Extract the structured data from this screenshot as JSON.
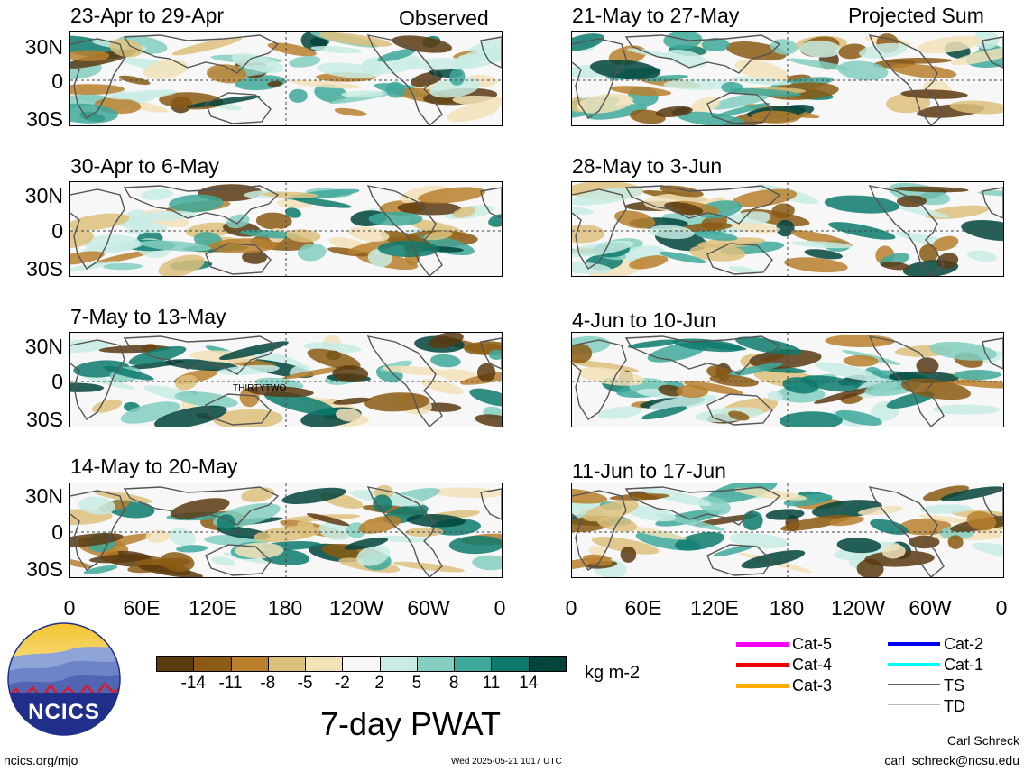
{
  "header": {
    "left_label": "Observed",
    "right_label": "Projected Sum"
  },
  "panels_left": [
    {
      "title": "23-Apr to 29-Apr"
    },
    {
      "title": "30-Apr to 6-May"
    },
    {
      "title": "7-May to 13-May",
      "annotation": "THIRTYTWO"
    },
    {
      "title": "14-May to 20-May"
    }
  ],
  "panels_right": [
    {
      "title": "21-May to 27-May"
    },
    {
      "title": "28-May to 3-Jun"
    },
    {
      "title": "4-Jun to 10-Jun"
    },
    {
      "title": "11-Jun to 17-Jun"
    }
  ],
  "lat_labels": [
    "30N",
    "0",
    "30S"
  ],
  "lon_labels": [
    "0",
    "60E",
    "120E",
    "180",
    "120W",
    "60W",
    "0"
  ],
  "colorbar": {
    "colors": [
      "#5a3a10",
      "#8b5a14",
      "#b8802e",
      "#dcbf7c",
      "#f2e2b8",
      "#f7f7f7",
      "#c8ece4",
      "#84cfc1",
      "#3ea89a",
      "#0d7a6d",
      "#01443c"
    ],
    "labels": [
      "-14",
      "-11",
      "-8",
      "-5",
      "-2",
      "2",
      "5",
      "8",
      "11",
      "14"
    ],
    "units": "kg m-2"
  },
  "storm_legend": [
    {
      "label": "Cat-5",
      "color": "#ff00ff"
    },
    {
      "label": "Cat-4",
      "color": "#ee0000"
    },
    {
      "label": "Cat-3",
      "color": "#ffaa00"
    },
    {
      "label": "Cat-2",
      "color": "#0000ee"
    },
    {
      "label": "Cat-1",
      "color": "#00ffff"
    },
    {
      "label": "TS",
      "color": "#666666"
    },
    {
      "label": "TD",
      "color": "#bbbbbb"
    }
  ],
  "logo": {
    "text": "NCICS"
  },
  "main_title": "7-day PWAT",
  "footer": {
    "url": "ncics.org/mjo",
    "timestamp": "Wed 2025-05-21 1017 UTC",
    "author": "Carl Schreck",
    "email": "carl_schreck@ncsu.edu"
  }
}
